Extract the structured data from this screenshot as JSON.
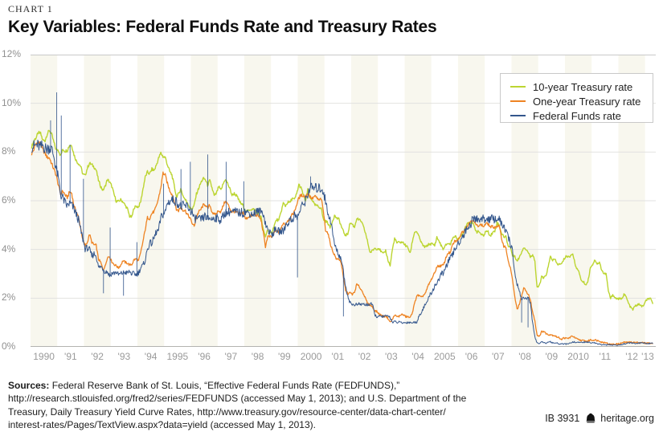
{
  "header": {
    "kicker": "CHART 1",
    "title": "Key Variables: Federal Funds Rate and Treasury Rates"
  },
  "chart_data": {
    "type": "line",
    "title": "Key Variables: Federal Funds Rate and Treasury Rates",
    "x_start": 1990,
    "x_end": 2013.4,
    "freq": "monthly",
    "ylim": [
      0,
      12
    ],
    "grid": "horizontal",
    "legend_position": "top-right",
    "stripe_color": "#f8f7ee",
    "grid_color": "#e2e2e0",
    "top_line_color": "#c9c9c9",
    "baseline_color": "#b3b3b0",
    "y_tick_labels": [
      "0%",
      "2%",
      "4%",
      "6%",
      "8%",
      "10%",
      "12%"
    ],
    "x_tick_labels": [
      "1990",
      "'91",
      "'92",
      "'93",
      "'94",
      "1995",
      "'96",
      "'97",
      "'98",
      "'99",
      "2000",
      "'01",
      "'02",
      "'03",
      "'04",
      "2005",
      "'06",
      "'07",
      "'08",
      "'09",
      "2010",
      "'11",
      "'12",
      "'13"
    ],
    "series": [
      {
        "name": "10-year Treasury rate",
        "color": "#bcd531",
        "stroke_width": 1.4,
        "jitter_base": 0.035,
        "jitter_scale": 0.004,
        "values": [
          8.21,
          8.47,
          8.59,
          8.79,
          8.76,
          8.48,
          8.47,
          8.75,
          8.89,
          8.72,
          8.39,
          8.08,
          8.09,
          7.85,
          8.11,
          8.04,
          8.07,
          8.28,
          8.27,
          7.9,
          7.65,
          7.53,
          7.42,
          7.09,
          7.03,
          7.34,
          7.54,
          7.48,
          7.39,
          7.26,
          6.84,
          6.59,
          6.42,
          6.59,
          6.87,
          6.77,
          6.6,
          6.26,
          5.98,
          5.97,
          6.04,
          5.96,
          5.81,
          5.68,
          5.36,
          5.33,
          5.72,
          5.77,
          5.75,
          5.97,
          6.48,
          6.97,
          7.18,
          7.1,
          7.3,
          7.24,
          7.46,
          7.74,
          7.96,
          7.81,
          7.78,
          7.47,
          7.2,
          7.06,
          6.63,
          6.17,
          6.28,
          6.49,
          6.2,
          6.04,
          5.93,
          5.71,
          5.65,
          5.81,
          6.27,
          6.51,
          6.74,
          6.91,
          6.87,
          6.64,
          6.83,
          6.53,
          6.2,
          6.3,
          6.58,
          6.42,
          6.69,
          6.89,
          6.71,
          6.49,
          6.22,
          6.3,
          6.21,
          6.03,
          5.88,
          5.81,
          5.54,
          5.57,
          5.65,
          5.64,
          5.65,
          5.5,
          5.46,
          5.34,
          4.81,
          4.53,
          4.83,
          4.65,
          4.72,
          5.0,
          5.23,
          5.18,
          5.54,
          5.9,
          5.79,
          5.94,
          5.92,
          6.11,
          6.03,
          6.28,
          6.66,
          6.52,
          6.26,
          5.99,
          6.44,
          6.1,
          6.05,
          5.83,
          5.8,
          5.74,
          5.72,
          5.24,
          5.16,
          5.1,
          4.89,
          5.14,
          5.39,
          5.28,
          5.24,
          4.97,
          4.73,
          4.57,
          4.65,
          5.09,
          5.04,
          4.91,
          5.28,
          5.21,
          5.16,
          4.93,
          4.65,
          4.26,
          3.87,
          3.94,
          4.05,
          4.03,
          4.05,
          3.9,
          3.81,
          3.96,
          3.57,
          3.33,
          3.98,
          4.45,
          4.27,
          4.29,
          4.3,
          4.27,
          4.15,
          4.08,
          3.83,
          4.35,
          4.72,
          4.73,
          4.5,
          4.28,
          4.13,
          4.1,
          4.19,
          4.23,
          4.22,
          4.17,
          4.5,
          4.34,
          4.14,
          4.0,
          4.18,
          4.26,
          4.2,
          4.46,
          4.54,
          4.47,
          4.42,
          4.57,
          4.72,
          4.99,
          5.11,
          5.11,
          5.09,
          4.88,
          4.72,
          4.73,
          4.6,
          4.56,
          4.76,
          4.72,
          4.56,
          4.69,
          4.75,
          5.1,
          5.0,
          4.67,
          4.52,
          4.53,
          4.15,
          4.1,
          3.74,
          3.74,
          3.51,
          3.68,
          3.88,
          4.1,
          4.01,
          3.89,
          3.69,
          3.81,
          3.53,
          2.42,
          2.52,
          2.87,
          2.82,
          2.93,
          3.29,
          3.72,
          3.56,
          3.59,
          3.4,
          3.39,
          3.4,
          3.59,
          3.73,
          3.69,
          3.73,
          3.85,
          3.42,
          3.2,
          3.01,
          2.7,
          2.65,
          2.54,
          2.76,
          3.29,
          3.39,
          3.58,
          3.41,
          3.46,
          3.17,
          3.0,
          3.0,
          2.3,
          1.98,
          2.15,
          2.01,
          1.98,
          1.97,
          1.97,
          2.17,
          2.05,
          1.8,
          1.62,
          1.53,
          1.68,
          1.72,
          1.75,
          1.65,
          1.72,
          1.91,
          1.98,
          1.96,
          1.76
        ]
      },
      {
        "name": "One-year Treasury rate",
        "color": "#ee8322",
        "stroke_width": 1.3,
        "jitter_base": 0.03,
        "jitter_scale": 0.006,
        "values": [
          7.92,
          8.11,
          8.35,
          8.4,
          8.32,
          8.1,
          7.94,
          7.78,
          7.76,
          7.52,
          7.29,
          7.05,
          6.64,
          6.27,
          6.4,
          6.24,
          6.13,
          6.36,
          6.31,
          5.78,
          5.57,
          5.33,
          4.89,
          4.38,
          4.15,
          4.29,
          4.63,
          4.3,
          4.19,
          4.17,
          3.6,
          3.47,
          3.18,
          3.3,
          3.68,
          3.71,
          3.5,
          3.39,
          3.33,
          3.24,
          3.36,
          3.54,
          3.47,
          3.44,
          3.36,
          3.39,
          3.58,
          3.61,
          3.54,
          3.87,
          4.32,
          4.82,
          5.31,
          5.27,
          5.48,
          5.56,
          5.76,
          6.11,
          6.54,
          7.14,
          7.05,
          6.7,
          6.43,
          6.27,
          6.0,
          5.64,
          5.59,
          5.75,
          5.62,
          5.59,
          5.43,
          5.31,
          5.09,
          4.94,
          5.34,
          5.54,
          5.64,
          5.81,
          5.85,
          5.67,
          5.83,
          5.55,
          5.42,
          5.47,
          5.61,
          5.53,
          5.8,
          5.99,
          5.87,
          5.69,
          5.54,
          5.56,
          5.52,
          5.46,
          5.46,
          5.53,
          5.24,
          5.31,
          5.39,
          5.38,
          5.44,
          5.41,
          5.36,
          5.21,
          4.71,
          4.12,
          4.53,
          4.52,
          4.51,
          4.7,
          4.78,
          4.69,
          4.85,
          5.1,
          5.03,
          5.2,
          5.25,
          5.43,
          5.55,
          5.84,
          6.12,
          6.22,
          6.22,
          6.15,
          6.33,
          6.17,
          6.08,
          6.18,
          6.13,
          6.01,
          6.09,
          5.6,
          4.81,
          4.68,
          4.3,
          3.98,
          3.78,
          3.58,
          3.62,
          3.47,
          2.82,
          2.33,
          2.18,
          2.22,
          2.16,
          2.23,
          2.57,
          2.48,
          2.35,
          2.2,
          1.96,
          1.76,
          1.72,
          1.65,
          1.49,
          1.45,
          1.36,
          1.3,
          1.24,
          1.27,
          1.18,
          1.01,
          1.12,
          1.31,
          1.24,
          1.25,
          1.34,
          1.31,
          1.24,
          1.24,
          1.19,
          1.43,
          1.78,
          2.12,
          2.1,
          2.02,
          2.12,
          2.23,
          2.5,
          2.67,
          2.86,
          3.03,
          3.3,
          3.32,
          3.33,
          3.36,
          3.64,
          3.87,
          3.85,
          4.18,
          4.33,
          4.35,
          4.45,
          4.68,
          4.77,
          4.9,
          5.0,
          5.16,
          5.22,
          5.08,
          4.97,
          5.01,
          5.01,
          4.94,
          5.06,
          5.05,
          4.92,
          4.93,
          4.91,
          4.96,
          4.96,
          4.47,
          4.14,
          4.1,
          3.5,
          3.26,
          2.71,
          2.05,
          1.54,
          1.74,
          2.06,
          2.42,
          2.28,
          2.18,
          1.91,
          1.42,
          1.07,
          0.49,
          0.44,
          0.62,
          0.64,
          0.55,
          0.5,
          0.51,
          0.48,
          0.46,
          0.4,
          0.37,
          0.31,
          0.37,
          0.35,
          0.35,
          0.4,
          0.45,
          0.37,
          0.32,
          0.29,
          0.26,
          0.26,
          0.23,
          0.25,
          0.29,
          0.27,
          0.29,
          0.26,
          0.25,
          0.19,
          0.18,
          0.19,
          0.11,
          0.1,
          0.11,
          0.11,
          0.12,
          0.12,
          0.16,
          0.19,
          0.18,
          0.19,
          0.19,
          0.19,
          0.18,
          0.18,
          0.18,
          0.18,
          0.16,
          0.15,
          0.16,
          0.15,
          0.12
        ]
      },
      {
        "name": "Federal Funds rate",
        "color": "#33568c",
        "stroke_width": 1.0,
        "jitter_base": 0.02,
        "jitter_scale": 0.03,
        "daily_spikes": [
          [
            1990.75,
            9.3
          ],
          [
            1990.98,
            10.45
          ],
          [
            1991.15,
            9.5
          ],
          [
            1991.48,
            8.3
          ],
          [
            1991.98,
            6.9
          ],
          [
            1992.73,
            2.2
          ],
          [
            1992.98,
            4.9
          ],
          [
            1993.48,
            2.1
          ],
          [
            1993.98,
            4.3
          ],
          [
            1994.98,
            6.7
          ],
          [
            1995.63,
            7.3
          ],
          [
            1995.98,
            7.6
          ],
          [
            1996.63,
            7.9
          ],
          [
            1997.32,
            7.6
          ],
          [
            1997.98,
            6.8
          ],
          [
            1999.99,
            2.85
          ],
          [
            2000.48,
            7.0
          ],
          [
            2001.71,
            1.25
          ],
          [
            2008.38,
            1.0
          ],
          [
            2008.62,
            0.8
          ]
        ],
        "values": [
          8.23,
          8.24,
          8.28,
          8.26,
          8.18,
          8.29,
          8.15,
          8.13,
          8.2,
          8.11,
          7.81,
          7.31,
          6.91,
          6.25,
          6.12,
          5.91,
          5.78,
          5.9,
          5.82,
          5.66,
          5.45,
          5.21,
          4.81,
          4.43,
          4.03,
          4.06,
          3.98,
          3.73,
          3.82,
          3.76,
          3.25,
          3.3,
          3.22,
          3.1,
          3.09,
          2.92,
          3.02,
          3.03,
          3.07,
          2.96,
          3.0,
          3.04,
          3.06,
          3.03,
          3.09,
          2.99,
          3.02,
          2.96,
          3.05,
          3.25,
          3.34,
          3.56,
          4.01,
          4.25,
          4.26,
          4.47,
          4.73,
          4.76,
          5.29,
          5.45,
          5.53,
          5.92,
          5.98,
          6.05,
          6.01,
          5.98,
          5.85,
          5.74,
          5.8,
          5.76,
          5.8,
          5.6,
          5.56,
          5.22,
          5.31,
          5.22,
          5.24,
          5.27,
          5.4,
          5.22,
          5.3,
          5.24,
          5.31,
          5.29,
          5.25,
          5.19,
          5.39,
          5.51,
          5.5,
          5.56,
          5.52,
          5.54,
          5.54,
          5.5,
          5.52,
          5.5,
          5.56,
          5.51,
          5.49,
          5.45,
          5.49,
          5.56,
          5.54,
          5.55,
          5.51,
          5.07,
          4.83,
          4.68,
          4.63,
          4.76,
          4.81,
          4.74,
          4.74,
          4.76,
          4.99,
          5.07,
          5.22,
          5.2,
          5.42,
          5.3,
          5.45,
          5.73,
          5.85,
          6.02,
          6.27,
          6.53,
          6.54,
          6.5,
          6.52,
          6.51,
          6.51,
          6.4,
          5.98,
          5.49,
          5.31,
          4.8,
          4.21,
          3.97,
          3.77,
          3.65,
          3.07,
          2.49,
          2.09,
          1.82,
          1.73,
          1.74,
          1.73,
          1.75,
          1.75,
          1.75,
          1.73,
          1.74,
          1.75,
          1.75,
          1.34,
          1.24,
          1.24,
          1.26,
          1.25,
          1.26,
          1.26,
          1.22,
          1.01,
          1.03,
          1.01,
          1.01,
          1.0,
          0.98,
          1.0,
          1.01,
          1.0,
          1.0,
          1.0,
          1.03,
          1.26,
          1.43,
          1.61,
          1.76,
          1.93,
          2.16,
          2.28,
          2.5,
          2.63,
          2.79,
          3.0,
          3.04,
          3.26,
          3.5,
          3.62,
          3.78,
          4.0,
          4.16,
          4.29,
          4.49,
          4.59,
          4.79,
          4.94,
          4.99,
          5.24,
          5.25,
          5.25,
          5.25,
          5.25,
          5.24,
          5.25,
          5.26,
          5.26,
          5.25,
          5.25,
          5.25,
          5.26,
          5.02,
          4.94,
          4.76,
          4.49,
          4.24,
          3.94,
          2.98,
          2.61,
          2.28,
          1.98,
          2.0,
          2.01,
          2.0,
          1.81,
          0.97,
          0.39,
          0.16,
          0.15,
          0.22,
          0.18,
          0.15,
          0.18,
          0.21,
          0.16,
          0.16,
          0.15,
          0.12,
          0.12,
          0.12,
          0.11,
          0.13,
          0.16,
          0.2,
          0.2,
          0.18,
          0.18,
          0.19,
          0.19,
          0.19,
          0.19,
          0.18,
          0.17,
          0.16,
          0.14,
          0.1,
          0.09,
          0.09,
          0.07,
          0.1,
          0.08,
          0.07,
          0.08,
          0.07,
          0.08,
          0.1,
          0.13,
          0.14,
          0.16,
          0.16,
          0.16,
          0.13,
          0.14,
          0.16,
          0.16,
          0.16,
          0.14,
          0.15,
          0.14,
          0.15
        ]
      }
    ]
  },
  "sources": {
    "label": "Sources:",
    "lines": [
      " Federal Reserve Bank of St. Louis, “Effective Federal Funds Rate (FEDFUNDS),”",
      "http://research.stlouisfed.org/fred2/series/FEDFUNDS (accessed May 1, 2013); and U.S. Department of the",
      "Treasury, Daily Treasury Yield Curve Rates, http://www.treasury.gov/resource-center/data-chart-center/",
      "interest-rates/Pages/TextView.aspx?data=yield (accessed May 1, 2013)."
    ]
  },
  "footer": {
    "doc_id": "IB 3931",
    "site": "heritage.org"
  }
}
